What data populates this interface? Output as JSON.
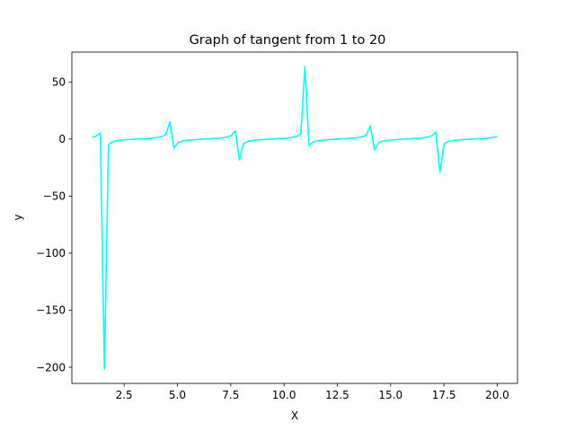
{
  "chart_data": {
    "type": "line",
    "title": "Graph of tangent from 1 to 20",
    "xlabel": "X",
    "ylabel": "y",
    "xlim": [
      0.05,
      20.95
    ],
    "ylim": [
      -214.2,
      76.2
    ],
    "x_ticks": [
      2.5,
      5.0,
      7.5,
      10.0,
      12.5,
      15.0,
      17.5,
      20.0
    ],
    "x_tick_labels": [
      "2.5",
      "5.0",
      "7.5",
      "10.0",
      "12.5",
      "15.0",
      "17.5",
      "20.0"
    ],
    "y_ticks": [
      -200,
      -150,
      -100,
      -50,
      0,
      50
    ],
    "y_tick_labels": [
      "−200",
      "−150",
      "−100",
      "−50",
      "0",
      "50"
    ],
    "grid": false,
    "legend": "none",
    "series": [
      {
        "color": "#00ffff",
        "sampling": {
          "x_start": 1,
          "x_end": 20,
          "count": 100
        }
      }
    ]
  }
}
